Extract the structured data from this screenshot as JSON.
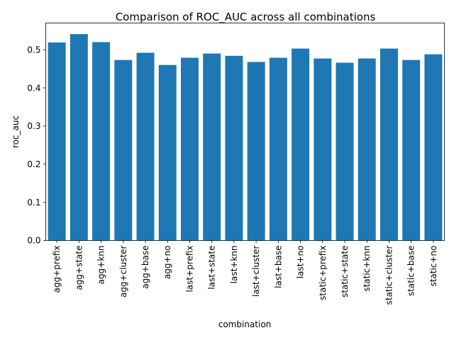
{
  "chart_data": {
    "type": "bar",
    "title": "Comparison of ROC_AUC across all combinations",
    "xlabel": "combination",
    "ylabel": "roc_auc",
    "ylim": [
      0,
      0.57
    ],
    "yticks": [
      0.0,
      0.1,
      0.2,
      0.3,
      0.4,
      0.5
    ],
    "ytick_labels": [
      "0.0",
      "0.1",
      "0.2",
      "0.3",
      "0.4",
      "0.5"
    ],
    "grid": false,
    "bar_color": "#1f77b4",
    "categories": [
      "agg+prefix",
      "agg+state",
      "agg+knn",
      "agg+cluster",
      "agg+base",
      "agg+no",
      "last+prefix",
      "last+state",
      "last+knn",
      "last+cluster",
      "last+base",
      "last+no",
      "static+prefix",
      "static+state",
      "static+knn",
      "static+cluster",
      "static+base",
      "static+no"
    ],
    "values": [
      0.519,
      0.541,
      0.52,
      0.473,
      0.492,
      0.46,
      0.479,
      0.49,
      0.484,
      0.468,
      0.479,
      0.503,
      0.477,
      0.466,
      0.477,
      0.503,
      0.473,
      0.488
    ]
  }
}
